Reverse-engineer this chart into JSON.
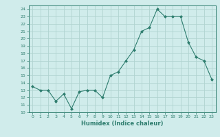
{
  "x": [
    0,
    1,
    2,
    3,
    4,
    5,
    6,
    7,
    8,
    9,
    10,
    11,
    12,
    13,
    14,
    15,
    16,
    17,
    18,
    19,
    20,
    21,
    22,
    23
  ],
  "y": [
    13.5,
    13.0,
    13.0,
    11.5,
    12.5,
    10.5,
    12.8,
    13.0,
    13.0,
    12.0,
    15.0,
    15.5,
    17.0,
    18.5,
    21.0,
    21.5,
    24.0,
    23.0,
    23.0,
    23.0,
    19.5,
    17.5,
    17.0,
    14.5
  ],
  "line_color": "#2e7d6e",
  "marker": "D",
  "marker_size": 2,
  "bg_color": "#d0eceb",
  "grid_color": "#b0d4d0",
  "xlabel": "Humidex (Indice chaleur)",
  "xlim": [
    -0.5,
    23.5
  ],
  "ylim": [
    10,
    24.5
  ],
  "yticks": [
    10,
    11,
    12,
    13,
    14,
    15,
    16,
    17,
    18,
    19,
    20,
    21,
    22,
    23,
    24
  ],
  "xticks": [
    0,
    1,
    2,
    3,
    4,
    5,
    6,
    7,
    8,
    9,
    10,
    11,
    12,
    13,
    14,
    15,
    16,
    17,
    18,
    19,
    20,
    21,
    22,
    23
  ]
}
